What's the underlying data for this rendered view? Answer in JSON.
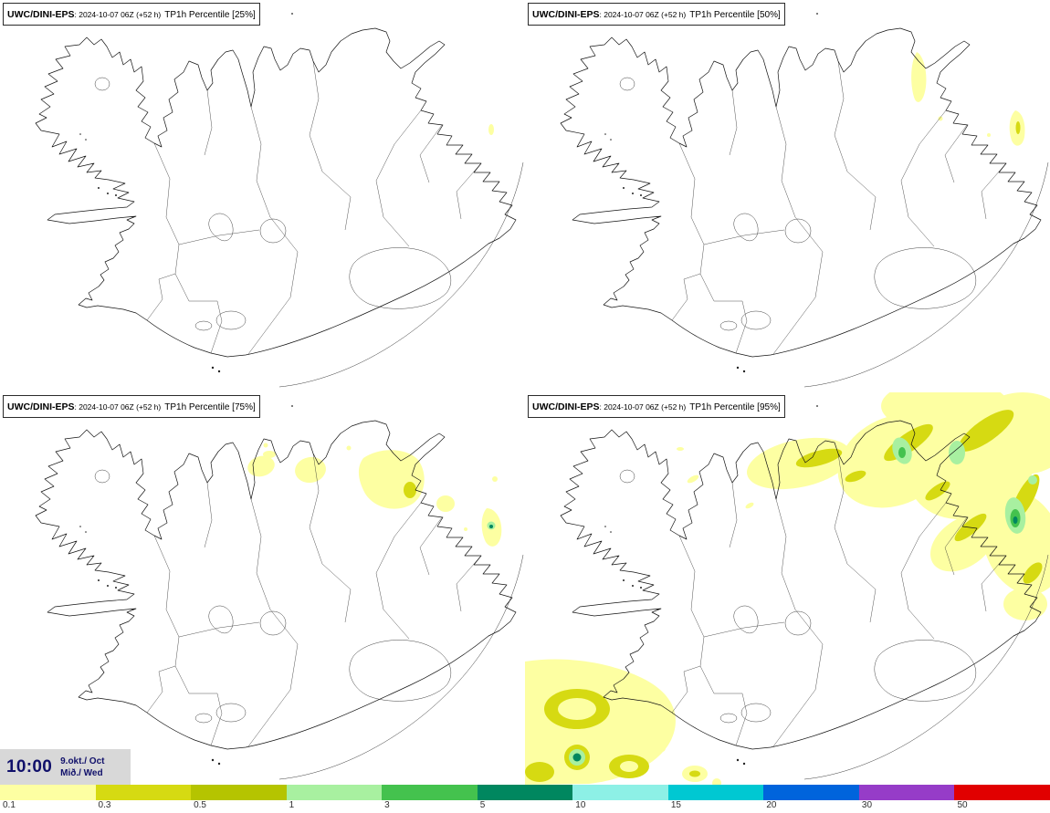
{
  "panels": [
    {
      "model": "UWC/DINI-EPS",
      "run": ": 2024-10-07 06Z (+52 h)",
      "param": "TP1h Percentile [25%]"
    },
    {
      "model": "UWC/DINI-EPS",
      "run": ": 2024-10-07 06Z (+52 h)",
      "param": "TP1h Percentile [50%]"
    },
    {
      "model": "UWC/DINI-EPS",
      "run": ": 2024-10-07 06Z (+52 h)",
      "param": "TP1h Percentile [75%]"
    },
    {
      "model": "UWC/DINI-EPS",
      "run": ": 2024-10-07 06Z (+52 h)",
      "param": "TP1h Percentile [95%]"
    }
  ],
  "time_box": {
    "time": "10:00",
    "date": "9.okt./ Oct",
    "weekday": "Mið./ Wed"
  },
  "colorbar": {
    "labels": [
      "0.1",
      "0.3",
      "0.5",
      "1",
      "3",
      "5",
      "10",
      "15",
      "20",
      "30",
      "50"
    ],
    "colors": [
      "#fdffa2",
      "#d6da12",
      "#b5c400",
      "#a8f0a0",
      "#44c24e",
      "#00875f",
      "#8df0e6",
      "#00c8d2",
      "#0064dc",
      "#963cc8",
      "#e10000"
    ]
  }
}
